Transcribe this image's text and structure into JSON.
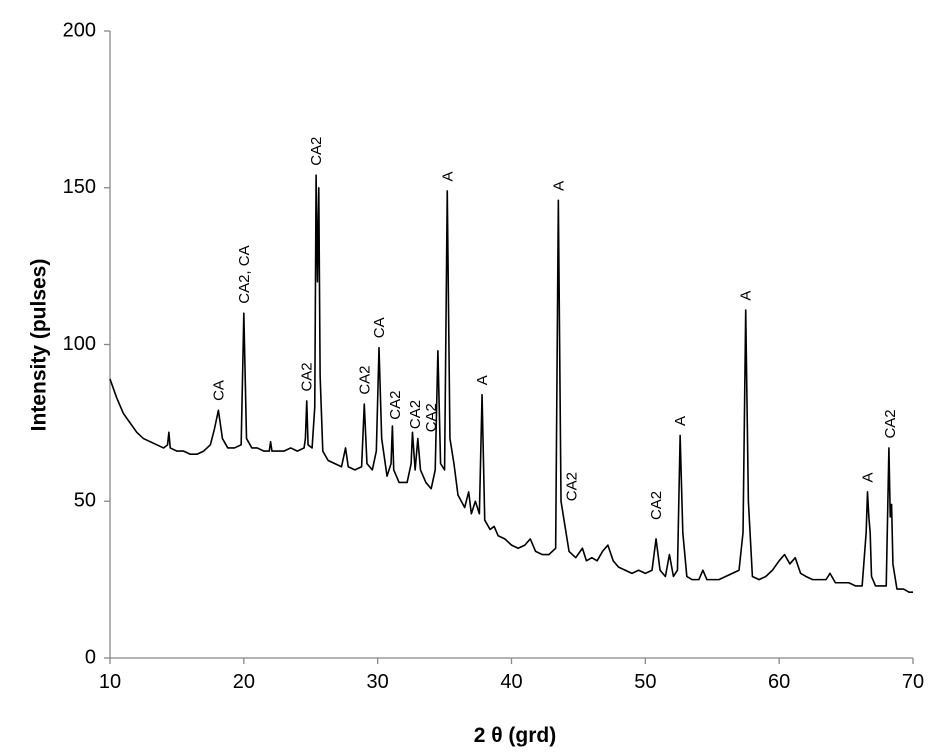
{
  "chart_data": {
    "type": "line",
    "xlabel": "2 θ (grd)",
    "ylabel": "Intensity (pulses)",
    "xlim": [
      10,
      70
    ],
    "xticks": [
      10,
      20,
      30,
      40,
      50,
      60,
      70
    ],
    "ylim": [
      0,
      200
    ],
    "yticks": [
      0,
      50,
      100,
      150,
      200
    ],
    "grid": false,
    "x": [
      10,
      10.5,
      11,
      11.5,
      12,
      12.5,
      13,
      13.5,
      14,
      14.3,
      14.4,
      14.5,
      15,
      15.5,
      16,
      16.5,
      17,
      17.5,
      17.8,
      18.1,
      18.4,
      18.8,
      19.3,
      19.8,
      20.0,
      20.2,
      20.6,
      21,
      21.5,
      21.9,
      22.0,
      22.1,
      22.5,
      23,
      23.5,
      24,
      24.5,
      24.6,
      24.7,
      24.8,
      25.1,
      25.3,
      25.4,
      25.5,
      25.6,
      25.7,
      25.9,
      26.3,
      26.8,
      27.3,
      27.6,
      27.8,
      28.3,
      28.8,
      29.0,
      29.2,
      29.6,
      29.9,
      30.1,
      30.3,
      30.7,
      31.0,
      31.1,
      31.2,
      31.6,
      32.2,
      32.5,
      32.6,
      32.8,
      33.0,
      33.2,
      33.6,
      34.0,
      34.3,
      34.5,
      34.7,
      35.0,
      35.2,
      35.4,
      35.7,
      36.0,
      36.5,
      36.8,
      37.0,
      37.3,
      37.6,
      37.8,
      38.0,
      38.4,
      38.7,
      39.0,
      39.5,
      40,
      40.5,
      41,
      41.4,
      41.8,
      42.3,
      42.8,
      43.3,
      43.5,
      43.7,
      44.0,
      44.3,
      44.8,
      45.3,
      45.6,
      46,
      46.4,
      46.8,
      47.2,
      47.6,
      48,
      48.5,
      49,
      49.5,
      50,
      50.5,
      50.8,
      51.1,
      51.5,
      51.8,
      52.1,
      52.4,
      52.6,
      52.8,
      53.1,
      53.5,
      54,
      54.3,
      54.6,
      55,
      55.5,
      56,
      56.5,
      57,
      57.3,
      57.5,
      57.7,
      58,
      58.5,
      59,
      59.5,
      60,
      60.4,
      60.8,
      61.2,
      61.6,
      62,
      62.5,
      63,
      63.5,
      63.8,
      64.2,
      64.7,
      65.2,
      65.7,
      66.2,
      66.5,
      66.6,
      66.7,
      66.8,
      66.9,
      67.2,
      67.6,
      68.0,
      68.2,
      68.3,
      68.4,
      68.5,
      68.8,
      69.3,
      69.7,
      70
    ],
    "series": [
      {
        "color": "#000000",
        "values": [
          89,
          83,
          78,
          75,
          72,
          70,
          69,
          68,
          67,
          68,
          72,
          67,
          66,
          66,
          65,
          65,
          66,
          68,
          73,
          79,
          70,
          67,
          67,
          68,
          110,
          70,
          67,
          67,
          66,
          66,
          69,
          66,
          66,
          66,
          67,
          66,
          67,
          70,
          82,
          68,
          67,
          80,
          154,
          120,
          150,
          90,
          66,
          63,
          62,
          61,
          67,
          61,
          60,
          61,
          81,
          62,
          60,
          66,
          99,
          70,
          58,
          62,
          74,
          60,
          56,
          56,
          62,
          72,
          60,
          70,
          60,
          56,
          54,
          60,
          98,
          62,
          60,
          149,
          70,
          62,
          52,
          48,
          53,
          46,
          50,
          46,
          84,
          44,
          41,
          42,
          39,
          38,
          36,
          35,
          36,
          38,
          34,
          33,
          33,
          35,
          146,
          50,
          42,
          34,
          32,
          35,
          31,
          32,
          31,
          34,
          36,
          31,
          29,
          28,
          27,
          28,
          27,
          28,
          38,
          28,
          26,
          33,
          26,
          28,
          71,
          40,
          26,
          25,
          25,
          28,
          25,
          25,
          25,
          26,
          27,
          28,
          40,
          111,
          50,
          26,
          25,
          26,
          28,
          31,
          33,
          30,
          32,
          27,
          26,
          25,
          25,
          25,
          27,
          24,
          24,
          24,
          23,
          23,
          40,
          53,
          45,
          40,
          26,
          23,
          23,
          23,
          67,
          45,
          49,
          30,
          22,
          22,
          21,
          21
        ]
      }
    ],
    "annotations": [
      {
        "text": "CA",
        "x": 18.1,
        "y": 82
      },
      {
        "text": "CA2, CA",
        "x": 20.0,
        "y": 113
      },
      {
        "text": "CA2",
        "x": 24.7,
        "y": 85
      },
      {
        "text": "CA2",
        "x": 25.4,
        "y": 157
      },
      {
        "text": "CA2",
        "x": 29.0,
        "y": 84
      },
      {
        "text": "CA",
        "x": 30.1,
        "y": 102
      },
      {
        "text": "CA2",
        "x": 31.3,
        "y": 76
      },
      {
        "text": "CA2",
        "x": 32.8,
        "y": 73
      },
      {
        "text": "CA2",
        "x": 34.0,
        "y": 72
      },
      {
        "text": "A",
        "x": 35.2,
        "y": 152
      },
      {
        "text": "A",
        "x": 37.8,
        "y": 87
      },
      {
        "text": "A",
        "x": 43.5,
        "y": 149
      },
      {
        "text": "CA2",
        "x": 44.5,
        "y": 50
      },
      {
        "text": "CA2",
        "x": 50.8,
        "y": 44
      },
      {
        "text": "A",
        "x": 52.6,
        "y": 74
      },
      {
        "text": "A",
        "x": 57.5,
        "y": 114
      },
      {
        "text": "A",
        "x": 66.6,
        "y": 56
      },
      {
        "text": "CA2",
        "x": 68.3,
        "y": 70
      }
    ]
  }
}
